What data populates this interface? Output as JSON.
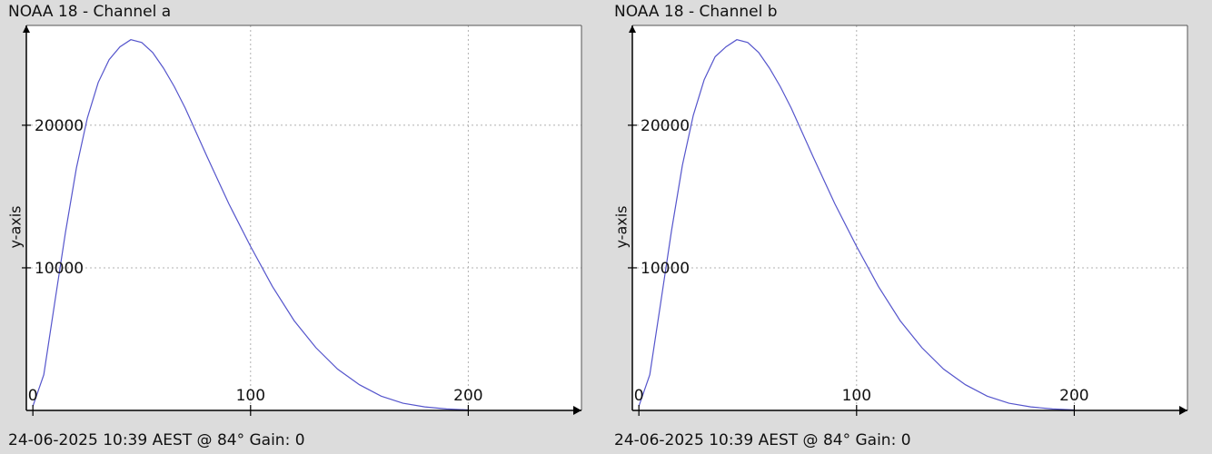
{
  "charts": [
    {
      "title": "NOAA 18 - Channel a",
      "footer": "24-06-2025 10:39 AEST @ 84° Gain: 0",
      "ylabel": "y-axis"
    },
    {
      "title": "NOAA 18 - Channel b",
      "footer": "24-06-2025 10:39 AEST @ 84° Gain: 0",
      "ylabel": "y-axis"
    }
  ],
  "chart_data": [
    {
      "type": "line",
      "title": "NOAA 18 - Channel a",
      "xlabel": "",
      "ylabel": "y-axis",
      "xlim": [
        -3,
        252
      ],
      "ylim": [
        0,
        27000
      ],
      "xticks": [
        0,
        100,
        200
      ],
      "yticks": [
        10000,
        20000
      ],
      "grid": true,
      "line_color": "#5555cc",
      "series": [
        {
          "x": [
            0,
            5,
            10,
            15,
            20,
            25,
            30,
            35,
            40,
            45,
            50,
            55,
            60,
            65,
            70,
            80,
            90,
            100,
            110,
            120,
            130,
            140,
            150,
            160,
            170,
            180,
            190,
            200
          ],
          "values": [
            300,
            2500,
            7500,
            12500,
            17000,
            20500,
            23000,
            24600,
            25500,
            26000,
            25800,
            25100,
            24000,
            22700,
            21200,
            17800,
            14500,
            11500,
            8700,
            6300,
            4400,
            2900,
            1800,
            1000,
            500,
            250,
            100,
            30
          ]
        }
      ]
    },
    {
      "type": "line",
      "title": "NOAA 18 - Channel b",
      "xlabel": "",
      "ylabel": "y-axis",
      "xlim": [
        -3,
        252
      ],
      "ylim": [
        0,
        27000
      ],
      "xticks": [
        0,
        100,
        200
      ],
      "yticks": [
        10000,
        20000
      ],
      "grid": true,
      "line_color": "#5555cc",
      "series": [
        {
          "x": [
            0,
            5,
            10,
            15,
            20,
            25,
            30,
            35,
            40,
            45,
            50,
            55,
            60,
            65,
            70,
            80,
            90,
            100,
            110,
            120,
            130,
            140,
            150,
            160,
            170,
            180,
            190,
            200
          ],
          "values": [
            300,
            2500,
            7500,
            12600,
            17200,
            20700,
            23200,
            24800,
            25500,
            26000,
            25800,
            25100,
            24000,
            22700,
            21200,
            17800,
            14500,
            11500,
            8700,
            6300,
            4400,
            2900,
            1800,
            1000,
            500,
            250,
            100,
            30
          ]
        }
      ]
    }
  ]
}
